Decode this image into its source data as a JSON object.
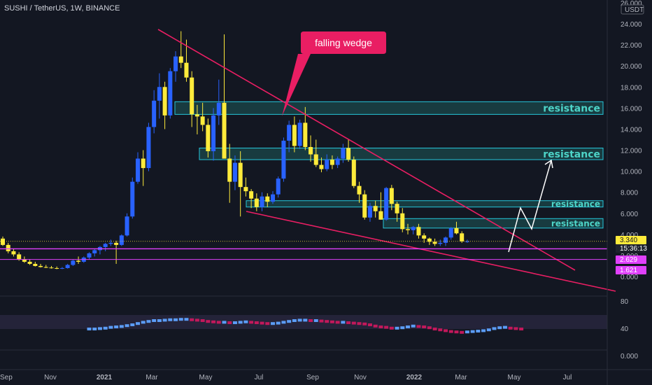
{
  "title": "SUSHI / TetherUS, 1W, BINANCE",
  "currency": "USDT",
  "callout": "falling wedge",
  "colors": {
    "background": "#131722",
    "candle_bull": "#2962ff",
    "candle_bear": "#ffeb3b",
    "trendline": "#e91e63",
    "support_line": "#e040fb",
    "zone_fill": "rgba(38,166,154,0.25)",
    "zone_border": "#26c6da",
    "zone_text": "#4dd4c8",
    "rsi_up": "#5b9cf6",
    "rsi_down": "#c2185b"
  },
  "chart_data": {
    "type": "candlestick",
    "title": "SUSHI / TetherUS, 1W, BINANCE",
    "ylim": [
      0,
      26
    ],
    "price_ticks": [
      "0.000",
      "2.000",
      "4.000",
      "6.000",
      "8.000",
      "10.000",
      "12.000",
      "14.000",
      "16.000",
      "18.000",
      "20.000",
      "22.000",
      "24.000",
      "26.000"
    ],
    "time_ticks": [
      "Sep",
      "Nov",
      "2021",
      "Mar",
      "May",
      "Jul",
      "Sep",
      "Nov",
      "2022",
      "Mar",
      "May",
      "Jul"
    ],
    "candles_ohlc_weekly": [
      [
        3.6,
        3.8,
        2.9,
        3.0
      ],
      [
        3.0,
        3.2,
        2.2,
        2.4
      ],
      [
        2.4,
        2.6,
        1.9,
        2.1
      ],
      [
        2.1,
        2.3,
        1.5,
        1.6
      ],
      [
        1.6,
        1.9,
        1.3,
        1.4
      ],
      [
        1.4,
        1.6,
        1.1,
        1.2
      ],
      [
        1.2,
        1.4,
        0.95,
        1.0
      ],
      [
        1.0,
        1.2,
        0.85,
        0.9
      ],
      [
        0.9,
        1.1,
        0.8,
        0.85
      ],
      [
        0.85,
        1.0,
        0.75,
        0.8
      ],
      [
        0.8,
        0.95,
        0.7,
        0.75
      ],
      [
        0.75,
        0.9,
        0.7,
        0.8
      ],
      [
        0.8,
        1.2,
        0.75,
        1.1
      ],
      [
        1.1,
        1.6,
        1.0,
        1.5
      ],
      [
        1.5,
        1.9,
        1.2,
        1.4
      ],
      [
        1.4,
        1.9,
        1.3,
        1.8
      ],
      [
        1.8,
        2.3,
        1.6,
        2.2
      ],
      [
        2.2,
        2.6,
        1.9,
        2.5
      ],
      [
        2.5,
        2.9,
        2.1,
        2.8
      ],
      [
        2.8,
        3.2,
        2.4,
        3.1
      ],
      [
        3.1,
        3.5,
        2.9,
        3.2
      ],
      [
        3.2,
        3.4,
        1.2,
        3.0
      ],
      [
        3.0,
        4.0,
        2.9,
        3.9
      ],
      [
        3.9,
        6.0,
        3.8,
        5.7
      ],
      [
        5.7,
        9.4,
        5.5,
        9.0
      ],
      [
        9.0,
        11.8,
        8.8,
        11.2
      ],
      [
        11.2,
        12.0,
        8.6,
        10.3
      ],
      [
        10.3,
        14.6,
        10.0,
        14.2
      ],
      [
        14.2,
        17.7,
        13.6,
        16.7
      ],
      [
        16.7,
        19.3,
        15.0,
        18.0
      ],
      [
        18.0,
        18.5,
        14.0,
        15.3
      ],
      [
        15.3,
        19.8,
        15.0,
        19.5
      ],
      [
        19.5,
        21.4,
        18.5,
        20.9
      ],
      [
        20.9,
        23.3,
        19.8,
        20.3
      ],
      [
        20.3,
        22.5,
        18.5,
        18.9
      ],
      [
        18.9,
        19.5,
        14.2,
        15.4
      ],
      [
        15.4,
        16.3,
        13.5,
        15.2
      ],
      [
        15.2,
        16.5,
        13.8,
        14.4
      ],
      [
        14.4,
        15.0,
        11.3,
        11.9
      ],
      [
        11.9,
        16.0,
        11.0,
        15.3
      ],
      [
        15.3,
        18.7,
        14.4,
        16.5
      ],
      [
        16.5,
        23.0,
        11.4,
        11.2
      ],
      [
        11.2,
        12.6,
        7.0,
        9.0
      ],
      [
        9.0,
        11.5,
        8.2,
        10.8
      ],
      [
        10.8,
        11.9,
        5.7,
        8.5
      ],
      [
        8.5,
        9.4,
        7.6,
        8.1
      ],
      [
        8.1,
        8.3,
        6.5,
        7.4
      ],
      [
        7.4,
        7.9,
        6.2,
        6.6
      ],
      [
        6.6,
        8.0,
        6.2,
        7.6
      ],
      [
        7.6,
        7.9,
        6.6,
        7.1
      ],
      [
        7.1,
        8.1,
        6.9,
        7.8
      ],
      [
        7.8,
        9.5,
        7.5,
        9.3
      ],
      [
        9.3,
        13.2,
        9.0,
        12.9
      ],
      [
        12.9,
        14.8,
        11.8,
        14.4
      ],
      [
        14.4,
        15.2,
        11.8,
        12.4
      ],
      [
        12.4,
        14.9,
        12.1,
        14.6
      ],
      [
        14.6,
        16.1,
        12.0,
        12.3
      ],
      [
        12.3,
        13.4,
        10.9,
        11.6
      ],
      [
        11.6,
        13.0,
        10.4,
        10.6
      ],
      [
        10.6,
        11.3,
        9.9,
        10.2
      ],
      [
        10.2,
        11.6,
        10.0,
        11.1
      ],
      [
        11.1,
        11.5,
        10.2,
        10.6
      ],
      [
        10.6,
        11.4,
        10.3,
        11.2
      ],
      [
        11.2,
        12.6,
        10.8,
        12.2
      ],
      [
        12.2,
        13.0,
        10.9,
        11.1
      ],
      [
        11.1,
        11.4,
        8.4,
        8.6
      ],
      [
        8.6,
        9.0,
        7.0,
        7.8
      ],
      [
        7.8,
        8.2,
        5.4,
        5.6
      ],
      [
        5.6,
        7.0,
        5.2,
        6.7
      ],
      [
        6.7,
        7.2,
        5.6,
        6.2
      ],
      [
        6.2,
        8.0,
        5.4,
        5.4
      ],
      [
        5.4,
        8.5,
        5.3,
        8.4
      ],
      [
        8.4,
        8.7,
        6.3,
        6.9
      ],
      [
        6.9,
        7.1,
        5.2,
        6.0
      ],
      [
        6.0,
        6.5,
        4.2,
        4.5
      ],
      [
        4.5,
        5.0,
        4.0,
        4.4
      ],
      [
        4.4,
        4.8,
        4.0,
        4.7
      ],
      [
        4.7,
        5.0,
        3.6,
        3.9
      ],
      [
        3.9,
        4.1,
        3.2,
        3.6
      ],
      [
        3.6,
        3.7,
        3.0,
        3.3
      ],
      [
        3.3,
        3.6,
        2.9,
        3.1
      ],
      [
        3.1,
        3.5,
        2.9,
        3.2
      ],
      [
        3.2,
        3.8,
        2.9,
        3.7
      ],
      [
        3.7,
        4.7,
        3.5,
        4.6
      ],
      [
        4.6,
        5.2,
        4.0,
        4.1
      ],
      [
        4.1,
        4.3,
        3.2,
        3.34
      ],
      [
        3.34,
        3.5,
        3.2,
        3.34
      ]
    ],
    "resistance_zones": [
      {
        "label": "resistance",
        "range": [
          15.4,
          16.6
        ]
      },
      {
        "label": "resistance",
        "range": [
          11.1,
          12.2
        ]
      },
      {
        "label": "resistance",
        "range": [
          6.6,
          7.2
        ]
      },
      {
        "label": "resistance",
        "range": [
          4.6,
          5.5
        ]
      }
    ],
    "support_levels": [
      2.629,
      1.621
    ],
    "last_price": "3.340",
    "countdown": "15:36:13",
    "level_badges": [
      "2.629",
      "1.621"
    ],
    "rsi": {
      "ticks": [
        "80",
        "40",
        "0.000"
      ],
      "values": [
        40,
        40,
        41,
        42,
        44,
        45,
        46,
        48,
        50,
        53,
        56,
        58,
        60,
        60,
        61,
        62,
        62,
        63,
        63,
        62,
        61,
        60,
        58,
        57,
        56,
        56,
        55,
        55,
        56,
        57,
        56,
        55,
        54,
        53,
        53,
        54,
        56,
        58,
        60,
        61,
        61,
        60,
        60,
        59,
        58,
        57,
        56,
        56,
        55,
        54,
        53,
        52,
        50,
        47,
        45,
        44,
        42,
        42,
        43,
        45,
        47,
        46,
        45,
        43,
        40,
        38,
        36,
        34,
        33,
        32,
        33,
        34,
        35,
        36,
        38,
        41,
        43,
        44,
        42,
        41,
        40
      ]
    }
  }
}
